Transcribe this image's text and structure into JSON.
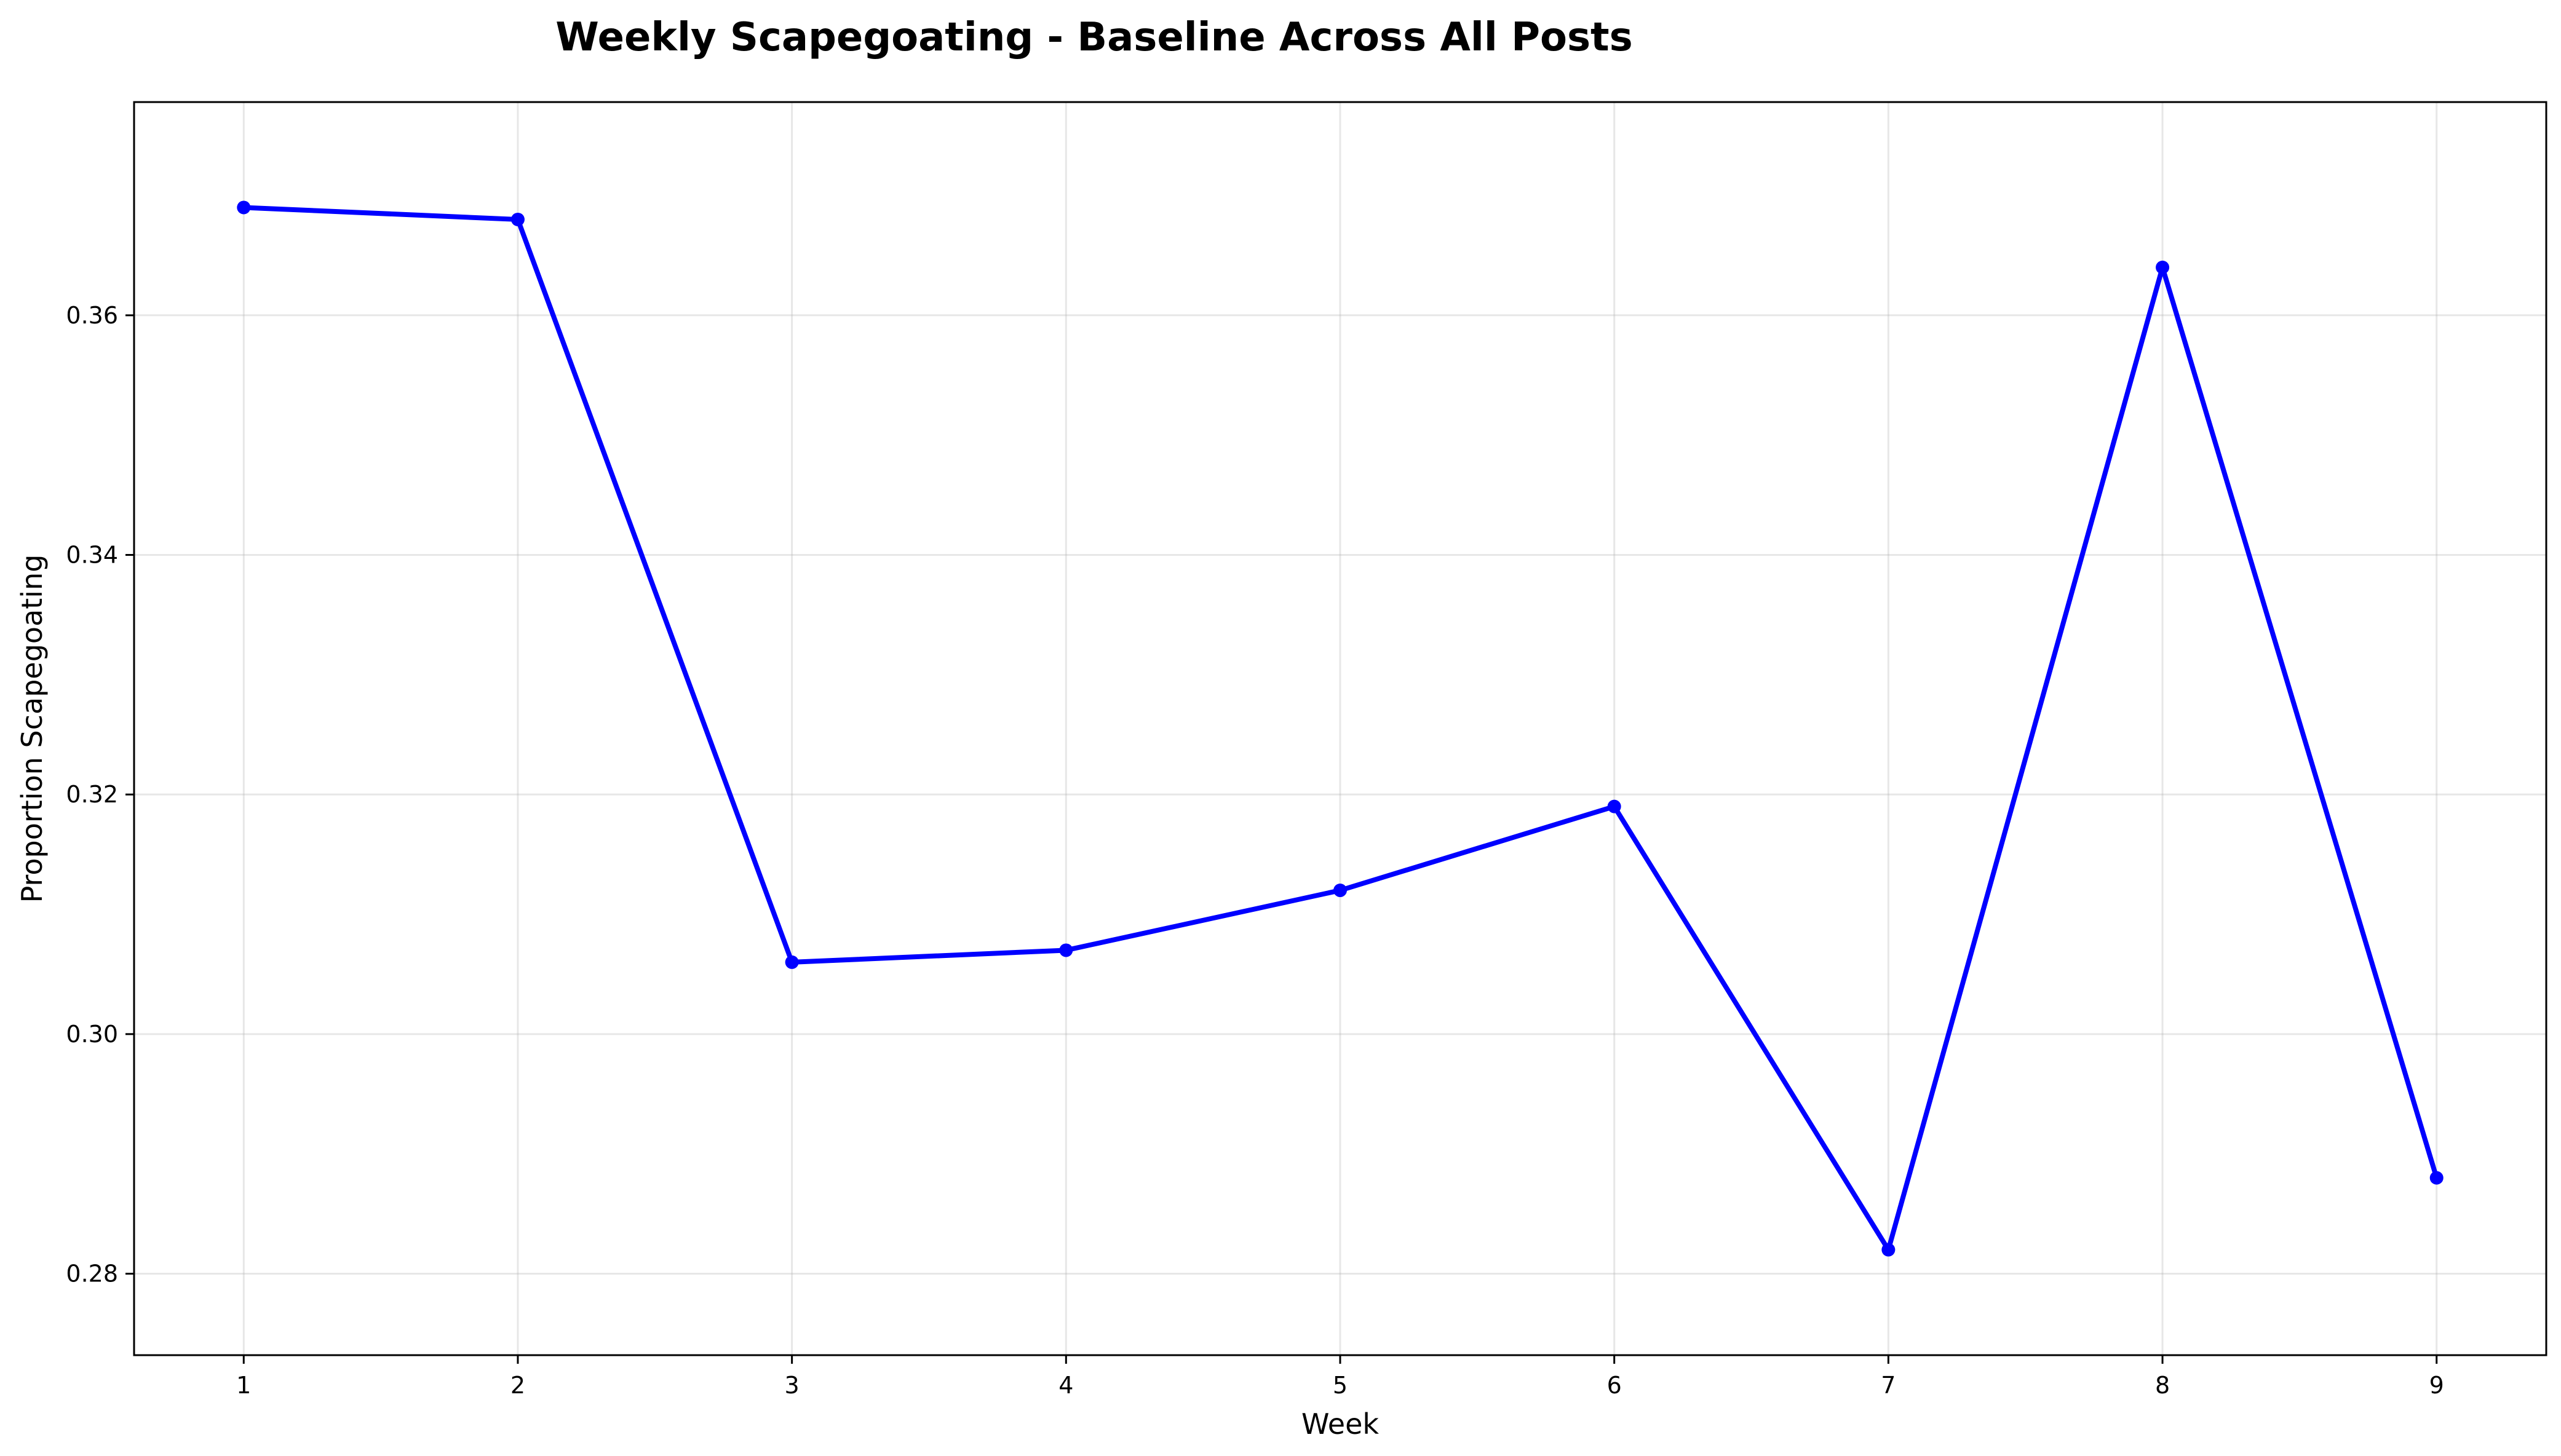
{
  "chart_data": {
    "type": "line",
    "title": "Weekly Scapegoating - Baseline Across All Posts",
    "xlabel": "Week",
    "ylabel": "Proportion Scapegoating",
    "x": [
      1,
      2,
      3,
      4,
      5,
      6,
      7,
      8,
      9
    ],
    "x_ticks": [
      "1",
      "2",
      "3",
      "4",
      "5",
      "6",
      "7",
      "8",
      "9"
    ],
    "xlim": [
      0.6,
      9.4
    ],
    "ylim": [
      0.2732,
      0.3778
    ],
    "y_ticks": [
      "0.28",
      "0.30",
      "0.32",
      "0.34",
      "0.36"
    ],
    "y_tick_values": [
      0.28,
      0.3,
      0.32,
      0.34,
      0.36
    ],
    "grid": true,
    "legend": "none",
    "series": [
      {
        "values": [
          0.369,
          0.368,
          0.306,
          0.307,
          0.312,
          0.319,
          0.282,
          0.364,
          0.288
        ],
        "color": "#0000ff",
        "marker": "circle"
      }
    ]
  }
}
